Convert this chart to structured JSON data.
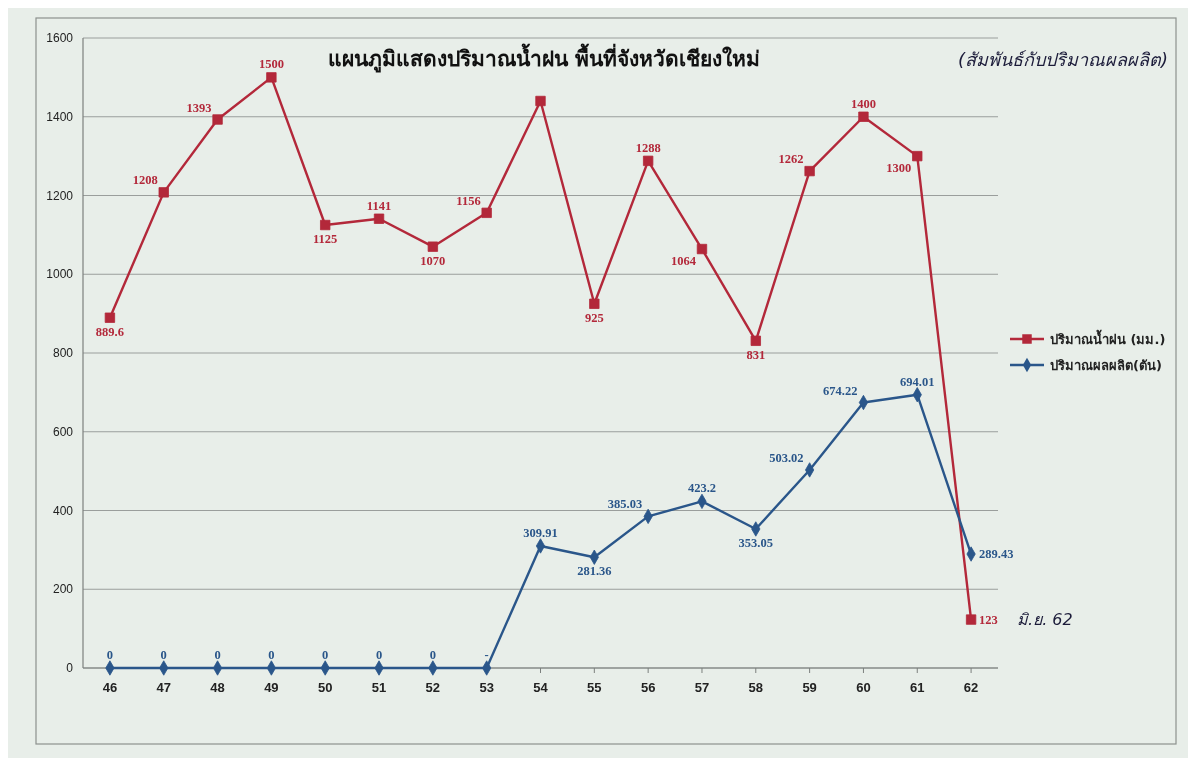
{
  "chart_data": {
    "type": "line",
    "title": "แผนภูมิแสดงปริมาณน้ำฝน พื้นที่จังหวัดเชียงใหม่",
    "subtitle": "(สัมพันธ์กับปริมาณผลผลิต)",
    "categories": [
      "46",
      "47",
      "48",
      "49",
      "50",
      "51",
      "52",
      "53",
      "54",
      "55",
      "56",
      "57",
      "58",
      "59",
      "60",
      "61",
      "62"
    ],
    "series": [
      {
        "name": "ปริมาณน้ำฝน (มม.)",
        "color": "#b3283a",
        "marker": "square",
        "values": [
          889.6,
          1208,
          1393,
          1500,
          1125,
          1141,
          1070,
          1156,
          1440,
          925,
          1288,
          1064,
          831,
          1262,
          1400,
          1300,
          123
        ],
        "value_labels": [
          "889.6",
          "1208",
          "1393",
          "1500",
          "1125",
          "1141",
          "1070",
          "1156",
          null,
          "925",
          "1288",
          "1064",
          "831",
          "1262",
          "1400",
          "1300",
          "123"
        ]
      },
      {
        "name": "ปริมาณผลผลิต(ตัน)",
        "color": "#2a568a",
        "marker": "diamond",
        "values": [
          0,
          0,
          0,
          0,
          0,
          0,
          0,
          0,
          309.91,
          281.36,
          385.03,
          423.2,
          353.05,
          503.02,
          674.22,
          694.01,
          289.43
        ],
        "value_labels": [
          "0",
          "0",
          "0",
          "0",
          "0",
          "0",
          "0",
          "-",
          "309.91",
          "281.36",
          "385.03",
          "423.2",
          "353.05",
          "503.02",
          "674.22",
          "694.01",
          "289.43"
        ]
      }
    ],
    "ylim": [
      0,
      1600
    ],
    "yticks": [
      0,
      200,
      400,
      600,
      800,
      1000,
      1200,
      1400,
      1600
    ],
    "grid": "y",
    "legend": "right",
    "annotations": [
      {
        "text": "มิ.ย. 62",
        "x": "62",
        "y": 123
      }
    ]
  }
}
